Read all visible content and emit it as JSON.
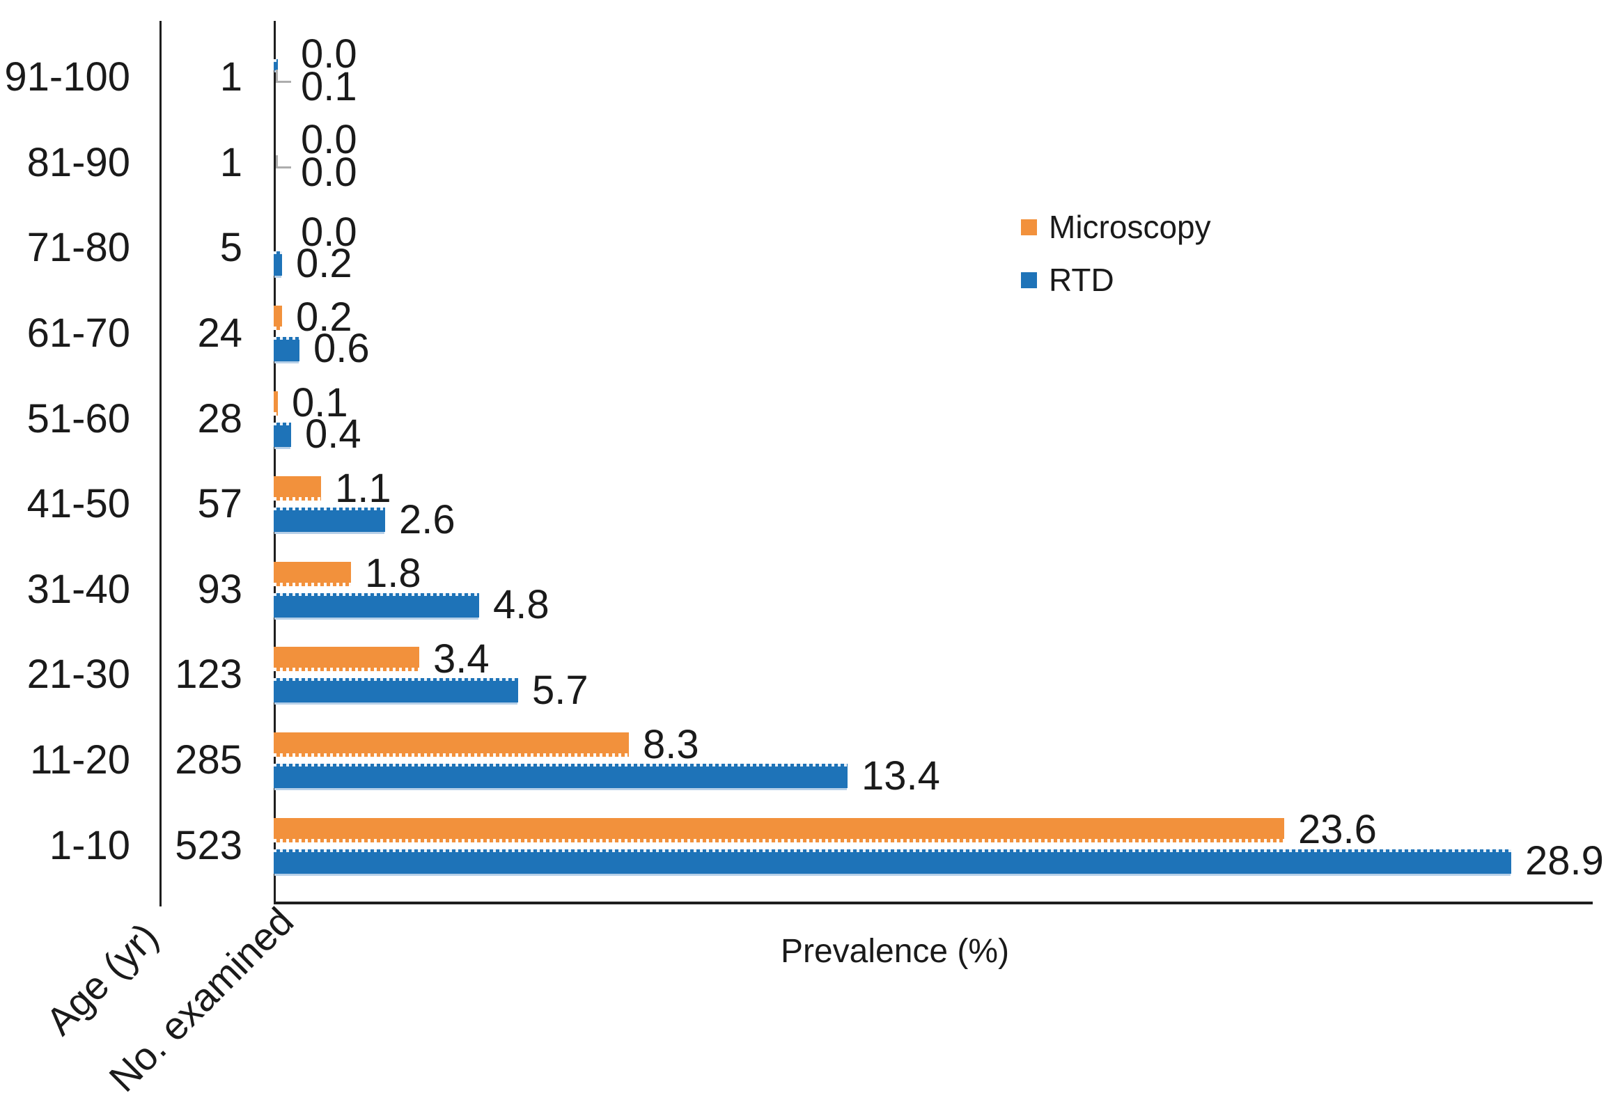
{
  "chart_data": {
    "type": "bar",
    "orientation": "horizontal",
    "xlabel": "Prevalence (%)",
    "row_axis_titles": [
      "Age (yr)",
      "No. examined"
    ],
    "categories": [
      "91-100",
      "81-90",
      "71-80",
      "61-70",
      "51-60",
      "41-50",
      "31-40",
      "21-30",
      "11-20",
      "1-10"
    ],
    "no_examined": [
      1,
      1,
      5,
      24,
      28,
      57,
      93,
      123,
      285,
      523
    ],
    "series": [
      {
        "name": "Microscopy",
        "color": "#F2913C",
        "values": [
          0.0,
          0.0,
          0.0,
          0.2,
          0.1,
          1.1,
          1.8,
          3.4,
          8.3,
          23.6
        ]
      },
      {
        "name": "RTD",
        "color": "#1E73B8",
        "values": [
          0.1,
          0.0,
          0.2,
          0.6,
          0.4,
          2.6,
          4.8,
          5.7,
          13.4,
          28.9
        ]
      }
    ],
    "xlim": [
      0,
      30.8
    ],
    "grid": false,
    "legend_position": "upper right",
    "value_labels": true,
    "value_label_format": "one-decimal",
    "leader_line_rows": [
      0,
      1
    ],
    "leader_line_color": "#ADADAD",
    "axis_color": "#1E1E1E",
    "background_color": "#FFFFFF"
  }
}
